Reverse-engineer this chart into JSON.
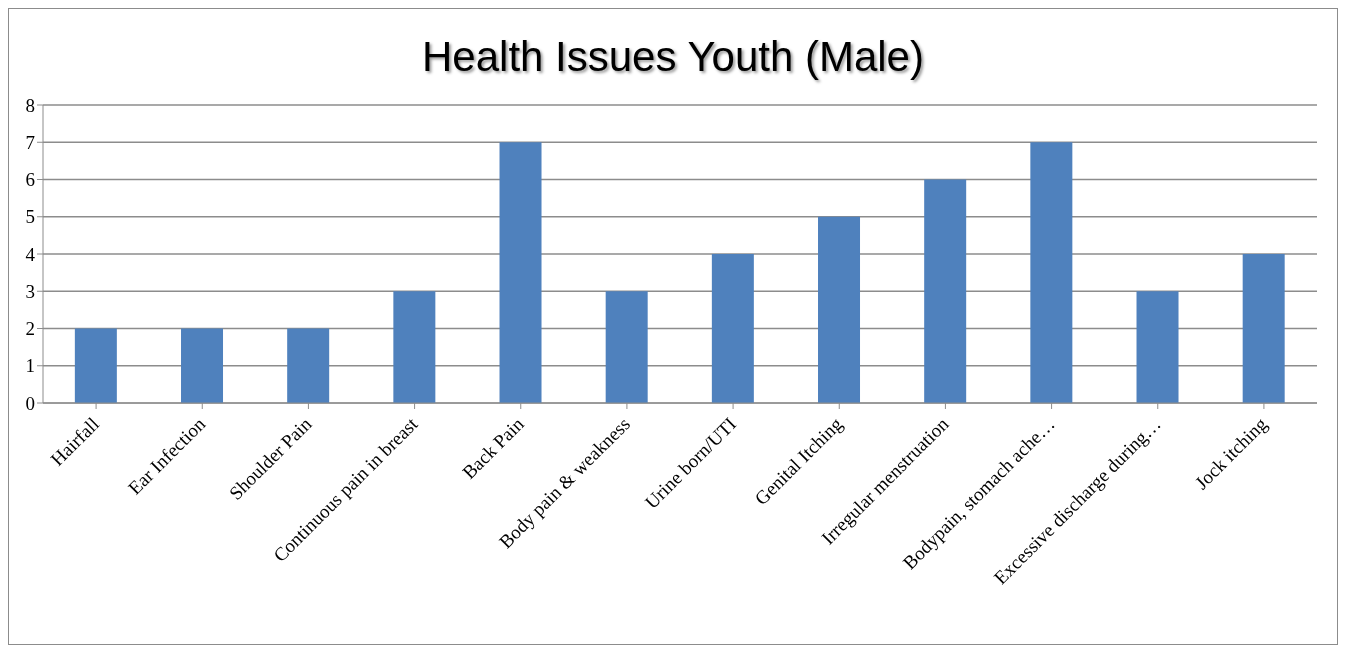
{
  "chart_data": {
    "type": "bar",
    "title": "Health Issues Youth (Male)",
    "categories": [
      "Hairfall",
      "Ear Infection",
      "Shoulder Pain",
      "Continuous pain in breast",
      "Back Pain",
      "Body pain & weakness",
      "Urine born/UTI",
      "Genital Itching",
      "Irregular menstruation",
      "Bodypain, stomach ache…",
      "Excessive discharge during…",
      "Jock itching"
    ],
    "values": [
      2,
      2,
      2,
      3,
      7,
      3,
      4,
      5,
      6,
      7,
      3,
      4
    ],
    "color": "#4f81bd",
    "ylim": [
      0,
      8
    ],
    "yticks": [
      0,
      1,
      2,
      3,
      4,
      5,
      6,
      7,
      8
    ],
    "grid": "y",
    "legend": false
  }
}
